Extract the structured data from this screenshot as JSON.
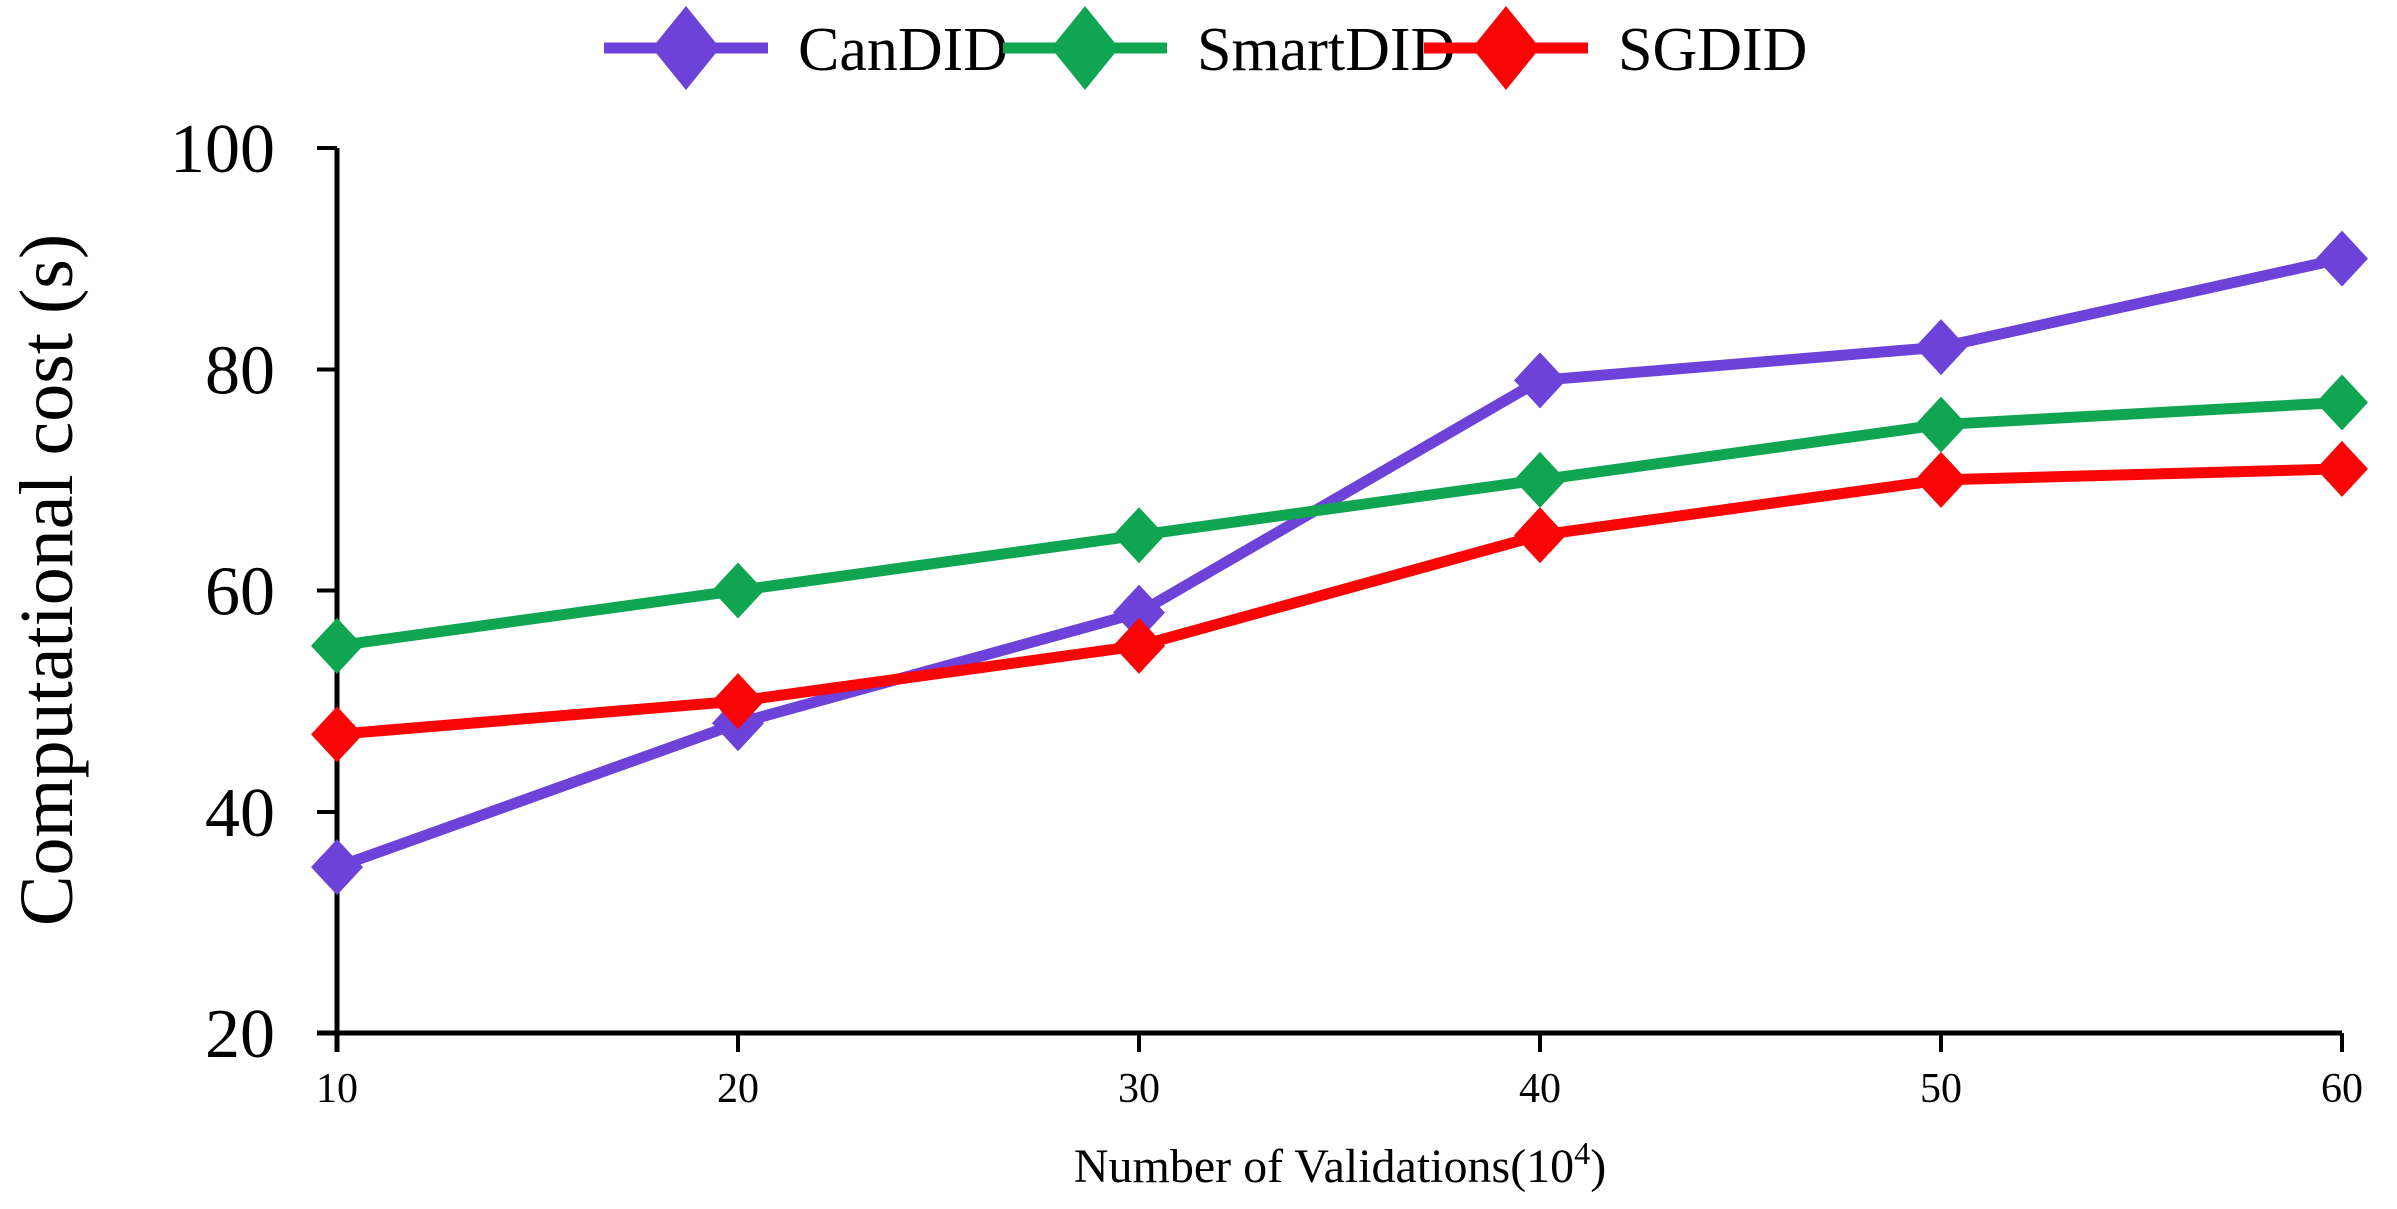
{
  "chart_data": {
    "type": "line",
    "title": "",
    "x": [
      10,
      20,
      30,
      40,
      50,
      60
    ],
    "series": [
      {
        "name": "CanDID",
        "color": "#6C42D9",
        "marker": "diamond",
        "values": [
          35,
          48,
          58,
          79,
          82,
          90
        ]
      },
      {
        "name": "SmartDID",
        "color": "#0FA551",
        "marker": "diamond",
        "values": [
          55,
          60,
          65,
          70,
          75,
          77
        ]
      },
      {
        "name": "SGDID",
        "color": "#F90505",
        "marker": "diamond",
        "values": [
          47,
          50,
          55,
          65,
          70,
          71
        ]
      }
    ],
    "xlabel": {
      "text": "Number of Validations(10",
      "sup": "4",
      "close": ")"
    },
    "ylabel": "Computational cost (s)",
    "xlim": [
      10,
      60
    ],
    "ylim": [
      20,
      100
    ],
    "xticks": [
      "10",
      "20",
      "30",
      "40",
      "50",
      "60"
    ],
    "yticks": [
      "20",
      "40",
      "60",
      "80",
      "100"
    ],
    "grid": false,
    "legend_position": "top",
    "axis_color": "#000000",
    "background": "#FFFFFF"
  }
}
